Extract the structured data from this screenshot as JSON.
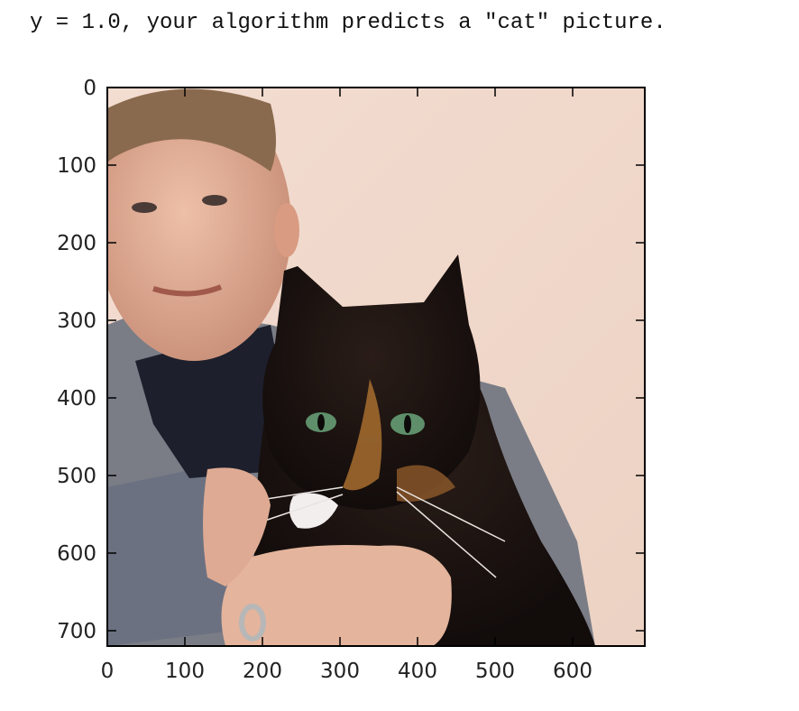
{
  "output": {
    "text": "y = 1.0, your algorithm predicts a \"cat\" picture."
  },
  "plot": {
    "image_subject": "man holding a tortoiseshell cat",
    "x_ticks": [
      "0",
      "100",
      "200",
      "300",
      "400",
      "500",
      "600"
    ],
    "y_ticks": [
      "0",
      "100",
      "200",
      "300",
      "400",
      "500",
      "600",
      "700"
    ]
  },
  "colors": {
    "wall": "#f1dcd0",
    "cat_fur": "#1c1412",
    "cat_eye": "#5e8f6a",
    "skin": "#e6b7a0",
    "sweater": "#6a6f7d"
  }
}
